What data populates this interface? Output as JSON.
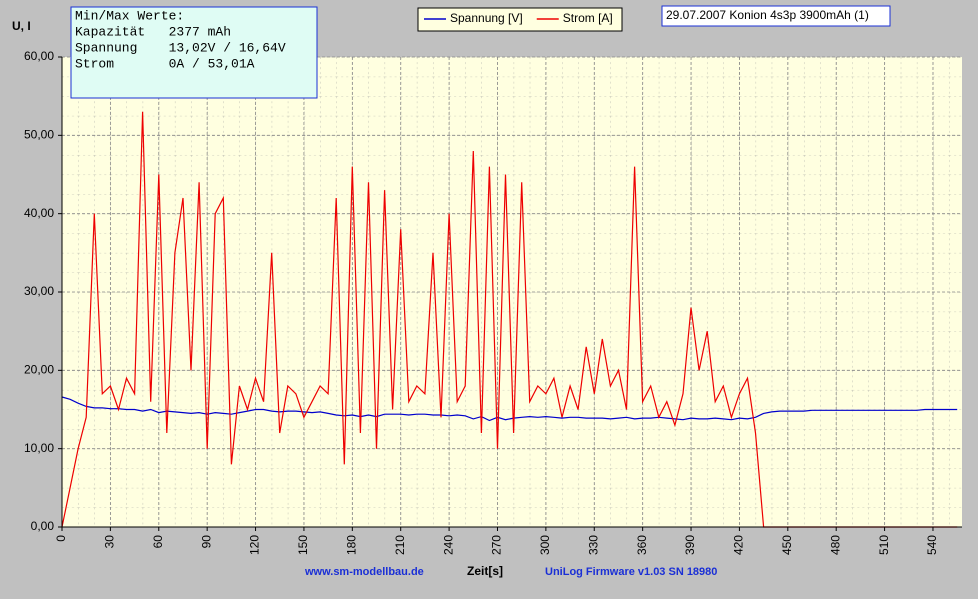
{
  "chart_data": {
    "type": "line",
    "y_label": "U, I",
    "x_label": "Zeit[s]",
    "annotation": "29.07.2007 Konion 4s3p 3900mAh (1)",
    "info_box": [
      "Min/Max Werte:",
      "Kapazität   2377 mAh",
      "Spannung    13,02V / 16,64V",
      "Strom       0A / 53,01A"
    ],
    "footer_left": "www.sm-modellbau.de",
    "footer_right": "UniLog Firmware v1.03 SN 18980",
    "xlim": [
      0,
      558
    ],
    "xticks": [
      0,
      30,
      60,
      90,
      120,
      150,
      180,
      210,
      240,
      270,
      300,
      330,
      360,
      390,
      420,
      450,
      480,
      510,
      540
    ],
    "ylim": [
      0,
      60
    ],
    "yticks": [
      {
        "value": 0,
        "label": "0,00"
      },
      {
        "value": 10,
        "label": "10,00"
      },
      {
        "value": 20,
        "label": "20,00"
      },
      {
        "value": 30,
        "label": "30,00"
      },
      {
        "value": 40,
        "label": "40,00"
      },
      {
        "value": 50,
        "label": "50,00"
      },
      {
        "value": 60,
        "label": "60,00"
      }
    ],
    "grid": true,
    "x": [
      0,
      5,
      10,
      15,
      20,
      25,
      30,
      35,
      40,
      45,
      50,
      55,
      60,
      65,
      70,
      75,
      80,
      85,
      90,
      95,
      100,
      105,
      110,
      115,
      120,
      125,
      130,
      135,
      140,
      145,
      150,
      155,
      160,
      165,
      170,
      175,
      180,
      185,
      190,
      195,
      200,
      205,
      210,
      215,
      220,
      225,
      230,
      235,
      240,
      245,
      250,
      255,
      260,
      265,
      270,
      275,
      280,
      285,
      290,
      295,
      300,
      305,
      310,
      315,
      320,
      325,
      330,
      335,
      340,
      345,
      350,
      355,
      360,
      365,
      370,
      375,
      380,
      385,
      390,
      395,
      400,
      405,
      410,
      415,
      420,
      425,
      430,
      435,
      440,
      445,
      450,
      455,
      460,
      465,
      470,
      475,
      480,
      485,
      490,
      495,
      500,
      505,
      510,
      515,
      520,
      525,
      530,
      535,
      540,
      545,
      550,
      555
    ],
    "series": [
      {
        "name": "Spannung [V]",
        "color": "#0000cc",
        "values": [
          16.6,
          16.3,
          15.8,
          15.4,
          15.2,
          15.2,
          15.1,
          15.1,
          15.0,
          15.0,
          14.8,
          15.0,
          14.6,
          14.8,
          14.7,
          14.6,
          14.5,
          14.6,
          14.4,
          14.6,
          14.5,
          14.4,
          14.6,
          14.8,
          15.0,
          15.0,
          14.8,
          14.7,
          14.8,
          14.8,
          14.7,
          14.6,
          14.7,
          14.5,
          14.3,
          14.2,
          14.3,
          14.1,
          14.3,
          14.1,
          14.4,
          14.4,
          14.4,
          14.3,
          14.4,
          14.4,
          14.3,
          14.3,
          14.2,
          14.3,
          14.2,
          13.8,
          14.1,
          13.6,
          14.0,
          13.7,
          13.9,
          14.0,
          14.1,
          14.0,
          14.1,
          14.0,
          13.9,
          14.0,
          14.0,
          13.9,
          13.9,
          13.9,
          13.8,
          13.9,
          14.0,
          13.8,
          13.9,
          13.9,
          14.0,
          13.9,
          13.8,
          13.7,
          13.9,
          13.8,
          13.8,
          13.9,
          13.8,
          13.7,
          13.9,
          13.8,
          14.0,
          14.5,
          14.7,
          14.8,
          14.8,
          14.8,
          14.8,
          14.9,
          14.9,
          14.9,
          14.9,
          14.9,
          14.9,
          14.9,
          14.9,
          14.9,
          14.9,
          14.9,
          14.9,
          14.9,
          14.9,
          15.0,
          15.0,
          15.0,
          15.0,
          15.0
        ]
      },
      {
        "name": "Strom [A]",
        "color": "#ee0000",
        "values": [
          0,
          5,
          10,
          14,
          40,
          17,
          18,
          15,
          19,
          17,
          53,
          16,
          45,
          12,
          35,
          42,
          20,
          44,
          10,
          40,
          42,
          8,
          18,
          15,
          19,
          16,
          35,
          12,
          18,
          17,
          14,
          16,
          18,
          17,
          42,
          8,
          46,
          12,
          44,
          10,
          43,
          15,
          38,
          16,
          18,
          17,
          35,
          14,
          40,
          16,
          18,
          48,
          12,
          46,
          10,
          45,
          12,
          44,
          16,
          18,
          17,
          19,
          14,
          18,
          15,
          23,
          17,
          24,
          18,
          20,
          15,
          46,
          16,
          18,
          14,
          16,
          13,
          17,
          28,
          20,
          25,
          16,
          18,
          14,
          17,
          19,
          12,
          0,
          0,
          0,
          0,
          0,
          0,
          0,
          0,
          0,
          0,
          0,
          0,
          0,
          0,
          0,
          0,
          0,
          0,
          0,
          0,
          0,
          0,
          0,
          0,
          0
        ]
      }
    ]
  }
}
